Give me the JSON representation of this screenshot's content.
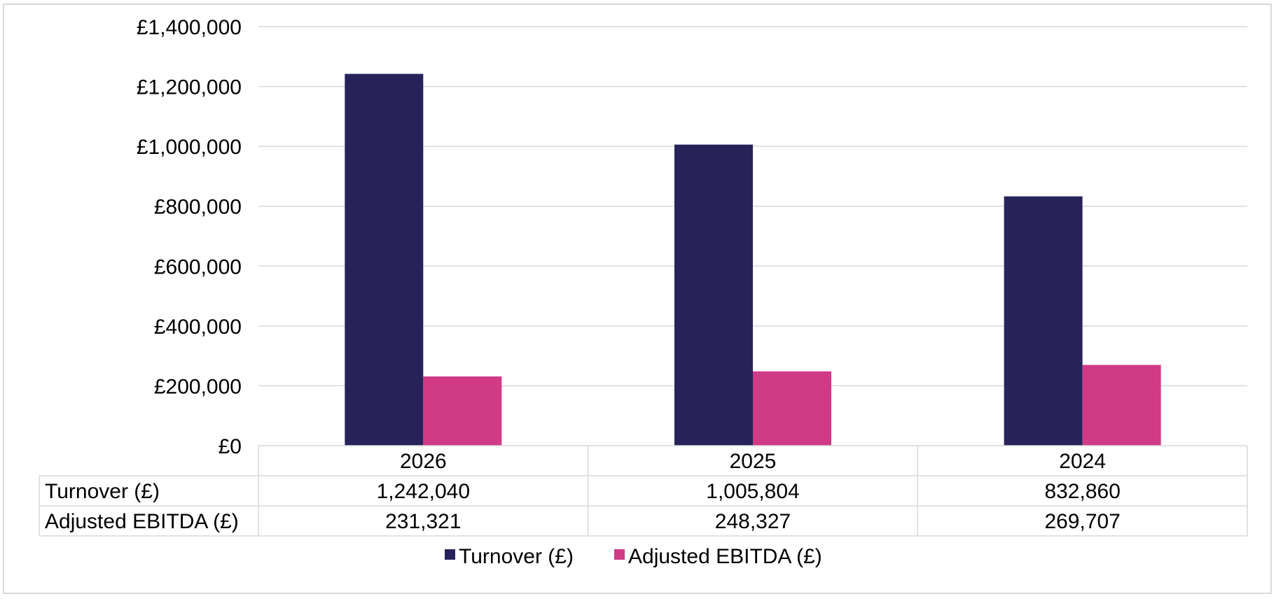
{
  "chart_data": {
    "type": "bar",
    "categories": [
      "2026",
      "2025",
      "2024"
    ],
    "series": [
      {
        "name": "Turnover (£)",
        "values": [
          1242040,
          1005804,
          832860
        ],
        "display": [
          "1,242,040",
          "1,005,804",
          "832,860"
        ],
        "color": "#27235a"
      },
      {
        "name": "Adjusted EBITDA (£)",
        "values": [
          231321,
          248327,
          269707
        ],
        "display": [
          "231,321",
          "248,327",
          "269,707"
        ],
        "color": "#d03a87"
      }
    ],
    "yticks": [
      "£0",
      "£200,000",
      "£400,000",
      "£600,000",
      "£800,000",
      "£1,000,000",
      "£1,200,000",
      "£1,400,000"
    ],
    "ylim": [
      0,
      1400000
    ],
    "ystep": 200000,
    "grid": true,
    "legend_position": "bottom",
    "data_table": true,
    "gridline_color": "#d9d9d9"
  }
}
